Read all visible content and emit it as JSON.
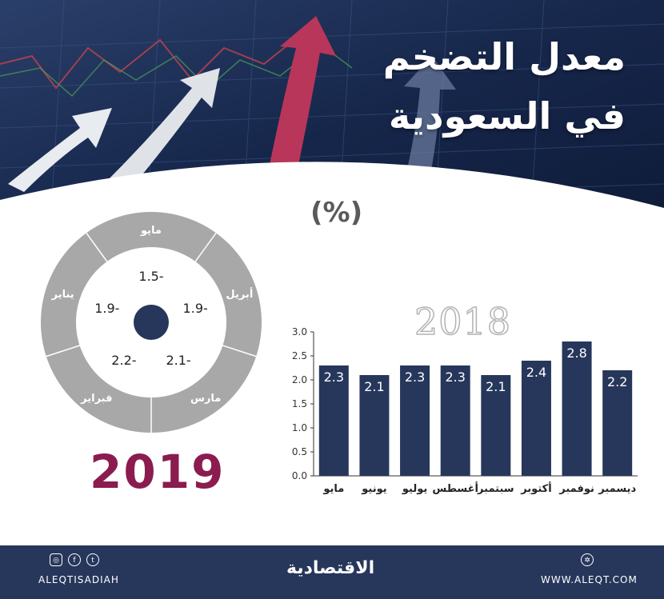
{
  "header": {
    "title_line1": "معدل التضخم",
    "title_line2": "في السعودية",
    "unit": "(%)"
  },
  "colors": {
    "navy": "#27375b",
    "bar": "#27375b",
    "accent_2019": "#8b1c4f",
    "ring": "#a8a8a8",
    "arrow_red": "#b8365a"
  },
  "chart_data": [
    {
      "type": "bar",
      "title": "2018",
      "categories": [
        "مايو",
        "يونيو",
        "يوليو",
        "أغسطس",
        "سبتمبر",
        "أكتوبر",
        "نوفمبر",
        "ديسمبر"
      ],
      "values": [
        2.3,
        2.1,
        2.3,
        2.3,
        2.1,
        2.4,
        2.8,
        2.2
      ],
      "ylim": [
        0.0,
        3.0
      ],
      "yticks": [
        "0.0",
        "0.5",
        "1.0",
        "1.5",
        "2.0",
        "2.5",
        "3.0"
      ],
      "grid": false
    },
    {
      "type": "pie",
      "title": "2019",
      "categories": [
        "مايو",
        "أبريل",
        "مارس",
        "فبراير",
        "يناير"
      ],
      "values": [
        -1.5,
        -1.9,
        -2.1,
        -2.2,
        -1.9
      ],
      "value_labels": [
        "1.5-",
        "1.9-",
        "2.1-",
        "2.2-",
        "1.9-"
      ]
    }
  ],
  "footer": {
    "brand": "الاقتصادية",
    "handle": "ALEQTISADIAH",
    "site": "WWW.ALEQT.COM",
    "social_icons": [
      "instagram-icon",
      "facebook-icon",
      "twitter-icon"
    ],
    "site_icon": "globe-icon"
  }
}
